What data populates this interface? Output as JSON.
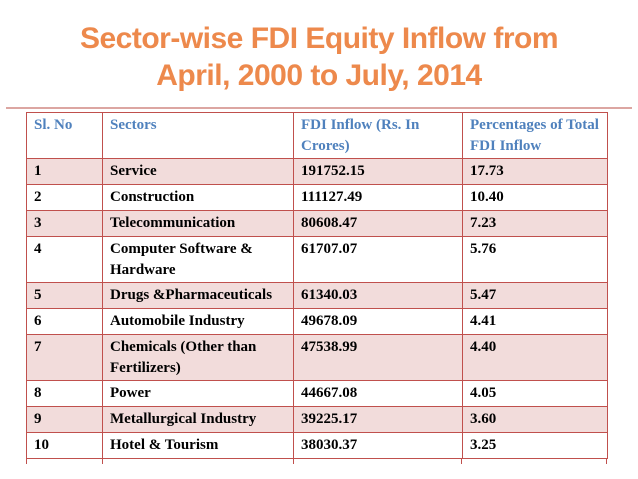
{
  "slide": {
    "title_line1": "Sector-wise FDI Equity Inflow from",
    "title_line2": "April, 2000 to July, 2014"
  },
  "colors": {
    "title_orange": "#ED894C",
    "header_blue": "#4F81BD",
    "row_pink": "#F2DCDB",
    "table_border": "#C0504D",
    "rule_pink": "#DCA6A2"
  },
  "table": {
    "columns": [
      "Sl. No",
      "Sectors",
      "FDI Inflow (Rs. In Crores)",
      "Percentages of Total FDI Inflow"
    ],
    "rows": [
      {
        "sl_no": "1",
        "sector": "Service",
        "inflow": "191752.15",
        "percentage": "17.73"
      },
      {
        "sl_no": "2",
        "sector": "Construction",
        "inflow": "111127.49",
        "percentage": "10.40"
      },
      {
        "sl_no": "3",
        "sector": "Telecommunication",
        "inflow": "80608.47",
        "percentage": "7.23"
      },
      {
        "sl_no": "4",
        "sector": "Computer Software & Hardware",
        "inflow": "61707.07",
        "percentage": "5.76"
      },
      {
        "sl_no": "5",
        "sector": "Drugs &Pharmaceuticals",
        "inflow": "61340.03",
        "percentage": "5.47"
      },
      {
        "sl_no": "6",
        "sector": "Automobile Industry",
        "inflow": "49678.09",
        "percentage": "4.41"
      },
      {
        "sl_no": "7",
        "sector": "Chemicals (Other than Fertilizers)",
        "inflow": "47538.99",
        "percentage": "4.40"
      },
      {
        "sl_no": "8",
        "sector": "Power",
        "inflow": "44667.08",
        "percentage": "4.05"
      },
      {
        "sl_no": "9",
        "sector": "Metallurgical Industry",
        "inflow": "39225.17",
        "percentage": "3.60"
      },
      {
        "sl_no": "10",
        "sector": "Hotel & Tourism",
        "inflow": "38030.37",
        "percentage": "3.25"
      }
    ]
  }
}
